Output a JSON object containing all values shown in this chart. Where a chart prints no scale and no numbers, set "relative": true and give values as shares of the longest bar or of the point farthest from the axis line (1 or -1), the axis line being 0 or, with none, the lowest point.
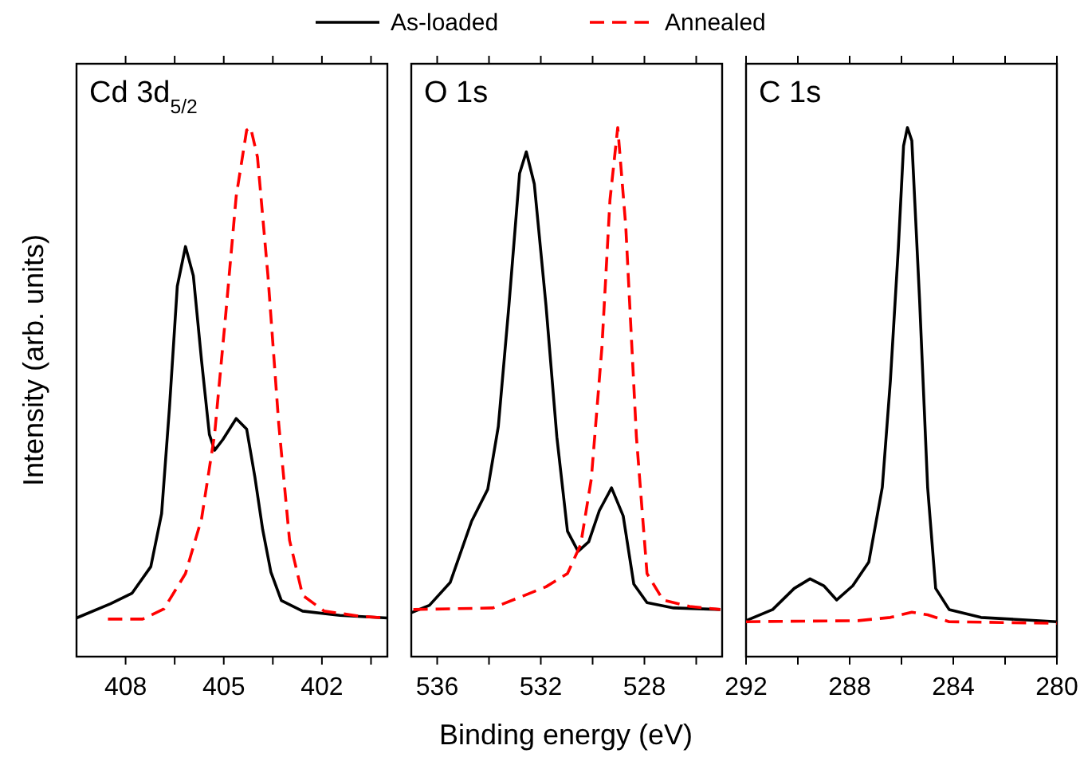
{
  "chart_data": [
    {
      "type": "line",
      "title": "Cd 3d$_{5/2}$",
      "ylabel": "Intensity (arb. units)",
      "relative": true,
      "legend": "top",
      "xlim": [
        409.5,
        400
      ],
      "xticks": [
        408,
        {
          "value": 406.5,
          "label": null
        },
        405,
        {
          "value": 403.5,
          "label": null
        },
        402,
        {
          "value": 400.5,
          "label": null
        }
      ],
      "series": [
        {
          "name": "As-loaded",
          "color": "#000000",
          "line_style": "solid",
          "x": [
            409.5,
            408.46,
            407.8,
            407.23,
            406.9,
            406.66,
            406.42,
            406.17,
            405.93,
            405.68,
            405.44,
            405.28,
            405.03,
            404.62,
            404.3,
            404.05,
            403.81,
            403.56,
            403.24,
            402.59,
            401.45,
            400.0
          ],
          "values": [
            0.073,
            0.1,
            0.12,
            0.17,
            0.27,
            0.47,
            0.7,
            0.775,
            0.72,
            0.56,
            0.42,
            0.39,
            0.41,
            0.45,
            0.43,
            0.34,
            0.24,
            0.16,
            0.106,
            0.086,
            0.078,
            0.073
          ]
        },
        {
          "name": "Annealed",
          "color": "#ff0000",
          "line_style": "dashed",
          "x": [
            408.54,
            407.48,
            406.83,
            406.17,
            405.68,
            405.28,
            404.95,
            404.62,
            404.3,
            404.18,
            403.97,
            403.65,
            403.32,
            402.99,
            402.59,
            401.93,
            400.79,
            400.0
          ],
          "values": [
            0.071,
            0.071,
            0.09,
            0.157,
            0.26,
            0.42,
            0.64,
            0.87,
            0.995,
            1.0,
            0.944,
            0.72,
            0.44,
            0.22,
            0.116,
            0.086,
            0.076,
            0.073
          ]
        }
      ]
    },
    {
      "type": "line",
      "title": "O 1s",
      "xlabel": "Binding energy (eV)",
      "relative": true,
      "xlim": [
        537,
        525
      ],
      "xticks": [
        536,
        {
          "value": 534,
          "label": null
        },
        532,
        {
          "value": 530,
          "label": null
        },
        528,
        {
          "value": 526,
          "label": null
        }
      ],
      "series": [
        {
          "color": "#000000",
          "line_style": "solid",
          "x": [
            537.0,
            536.3,
            535.5,
            534.67,
            534.05,
            533.64,
            533.23,
            532.82,
            532.56,
            532.25,
            531.8,
            531.38,
            530.97,
            530.56,
            530.15,
            529.74,
            529.27,
            528.82,
            528.41,
            527.9,
            526.87,
            525.07
          ],
          "values": [
            0.083,
            0.097,
            0.14,
            0.256,
            0.316,
            0.435,
            0.664,
            0.913,
            0.954,
            0.893,
            0.664,
            0.415,
            0.237,
            0.199,
            0.217,
            0.276,
            0.319,
            0.266,
            0.137,
            0.102,
            0.092,
            0.089
          ]
        },
        {
          "color": "#ff0000",
          "line_style": "dashed",
          "x": [
            536.92,
            533.85,
            532.82,
            531.8,
            530.97,
            530.46,
            530.05,
            529.64,
            529.33,
            529.03,
            528.72,
            528.31,
            527.9,
            527.28,
            526.26,
            525.07
          ],
          "values": [
            0.089,
            0.092,
            0.112,
            0.132,
            0.157,
            0.212,
            0.336,
            0.585,
            0.863,
            1.0,
            0.813,
            0.416,
            0.157,
            0.107,
            0.095,
            0.089
          ]
        }
      ]
    },
    {
      "type": "line",
      "title": "C 1s",
      "relative": true,
      "xlim": [
        292,
        280
      ],
      "xticks": [
        292,
        {
          "value": 290,
          "label": null
        },
        288,
        {
          "value": 286,
          "label": null
        },
        284,
        {
          "value": 282,
          "label": null
        },
        280
      ],
      "series": [
        {
          "color": "#000000",
          "line_style": "solid",
          "x": [
            292,
            290.97,
            290.14,
            289.53,
            289.0,
            288.5,
            287.88,
            287.26,
            286.74,
            286.43,
            286.12,
            285.92,
            285.77,
            285.6,
            285.3,
            284.99,
            284.68,
            284.16,
            282.93,
            280
          ],
          "values": [
            0.068,
            0.089,
            0.129,
            0.147,
            0.134,
            0.107,
            0.134,
            0.179,
            0.32,
            0.52,
            0.773,
            0.965,
            1.0,
            0.975,
            0.673,
            0.32,
            0.129,
            0.089,
            0.074,
            0.066
          ]
        },
        {
          "color": "#ff0000",
          "line_style": "dashed",
          "x": [
            292,
            287.67,
            286.43,
            285.6,
            284.99,
            284.16,
            280
          ],
          "values": [
            0.066,
            0.068,
            0.074,
            0.084,
            0.079,
            0.066,
            0.063
          ]
        }
      ]
    }
  ]
}
